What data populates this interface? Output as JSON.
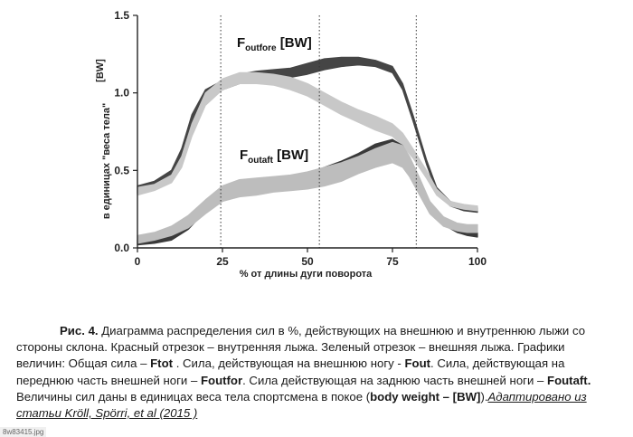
{
  "chart_data": {
    "type": "area",
    "x_ticks": [
      "0",
      "25",
      "50",
      "75",
      "100"
    ],
    "y_ticks": [
      "0.0",
      "0.5",
      "1.0",
      "1.5"
    ],
    "xlim": [
      0,
      100
    ],
    "ylim": [
      0,
      1.5
    ],
    "xlabel": "% от длины дуги поворота",
    "ylabel_unit": "[BW]",
    "ylabel": "в единицах \"веса тела\"",
    "vlines": [
      24.5,
      53.5,
      82
    ],
    "annotations": [
      {
        "main": "F",
        "sub": "outfore",
        "tail": " [BW]"
      },
      {
        "main": "F",
        "sub": "outaft",
        "tail": " [BW]"
      }
    ],
    "series": [
      {
        "band": "outfore-dark",
        "color": "#454545",
        "x": [
          0,
          5,
          10,
          13,
          16,
          20,
          25,
          30,
          35,
          40,
          45,
          50,
          55,
          60,
          65,
          70,
          75,
          78,
          81,
          85,
          88,
          92,
          96,
          100
        ],
        "low": [
          0.35,
          0.38,
          0.44,
          0.56,
          0.78,
          0.95,
          1.02,
          1.06,
          1.08,
          1.09,
          1.1,
          1.12,
          1.15,
          1.17,
          1.18,
          1.17,
          1.13,
          1.02,
          0.82,
          0.54,
          0.36,
          0.27,
          0.24,
          0.23
        ],
        "high": [
          0.4,
          0.43,
          0.5,
          0.64,
          0.86,
          1.02,
          1.08,
          1.12,
          1.14,
          1.15,
          1.16,
          1.19,
          1.22,
          1.23,
          1.23,
          1.21,
          1.17,
          1.06,
          0.86,
          0.57,
          0.39,
          0.3,
          0.27,
          0.26
        ]
      },
      {
        "band": "outfore-light",
        "color": "#c8c8c8",
        "x": [
          0,
          5,
          10,
          13,
          16,
          20,
          25,
          30,
          35,
          40,
          45,
          50,
          55,
          60,
          65,
          70,
          75,
          78,
          81,
          85,
          88,
          92,
          96,
          100
        ],
        "low": [
          0.34,
          0.37,
          0.42,
          0.52,
          0.72,
          0.92,
          1.02,
          1.06,
          1.06,
          1.05,
          1.02,
          0.98,
          0.92,
          0.86,
          0.81,
          0.76,
          0.72,
          0.66,
          0.58,
          0.45,
          0.34,
          0.27,
          0.25,
          0.24
        ],
        "high": [
          0.39,
          0.41,
          0.47,
          0.59,
          0.8,
          1.0,
          1.09,
          1.13,
          1.13,
          1.12,
          1.1,
          1.06,
          1.0,
          0.94,
          0.89,
          0.85,
          0.8,
          0.74,
          0.64,
          0.5,
          0.38,
          0.3,
          0.28,
          0.27
        ]
      },
      {
        "band": "outaft-dark",
        "color": "#3a3a3a",
        "x": [
          0,
          5,
          10,
          15,
          20,
          25,
          30,
          35,
          40,
          45,
          50,
          55,
          60,
          65,
          70,
          75,
          78,
          80,
          83,
          86,
          90,
          94,
          97,
          100
        ],
        "low": [
          0.02,
          0.03,
          0.05,
          0.12,
          0.24,
          0.34,
          0.37,
          0.36,
          0.37,
          0.4,
          0.43,
          0.48,
          0.52,
          0.57,
          0.63,
          0.66,
          0.62,
          0.53,
          0.38,
          0.25,
          0.15,
          0.1,
          0.08,
          0.07
        ],
        "high": [
          0.05,
          0.06,
          0.09,
          0.17,
          0.29,
          0.39,
          0.42,
          0.41,
          0.42,
          0.46,
          0.48,
          0.52,
          0.56,
          0.61,
          0.67,
          0.7,
          0.66,
          0.57,
          0.42,
          0.29,
          0.18,
          0.13,
          0.11,
          0.1
        ]
      },
      {
        "band": "outaft-light",
        "color": "#bdbdbd",
        "x": [
          0,
          5,
          10,
          15,
          20,
          25,
          30,
          35,
          40,
          45,
          50,
          55,
          60,
          65,
          70,
          75,
          78,
          80,
          83,
          86,
          90,
          94,
          97,
          100
        ],
        "low": [
          0.03,
          0.05,
          0.08,
          0.13,
          0.22,
          0.3,
          0.33,
          0.34,
          0.36,
          0.37,
          0.38,
          0.4,
          0.43,
          0.48,
          0.52,
          0.55,
          0.52,
          0.46,
          0.34,
          0.22,
          0.14,
          0.11,
          0.1,
          0.1
        ],
        "high": [
          0.08,
          0.1,
          0.14,
          0.21,
          0.31,
          0.4,
          0.44,
          0.45,
          0.46,
          0.47,
          0.49,
          0.52,
          0.55,
          0.59,
          0.64,
          0.68,
          0.66,
          0.59,
          0.45,
          0.3,
          0.2,
          0.16,
          0.15,
          0.15
        ]
      }
    ]
  },
  "caption": {
    "fig_label": "Рис. 4.",
    "p1": " Диаграмма распределения сил в %, действующих на внешнюю и внутреннюю лыжи со стороны склона. Красный отрезок – внутренняя лыжа. Зеленый отрезок – внешняя лыжа. Графики величин: Общая сила – ",
    "ftot": "Ftot",
    "p2": " . Сила, действующая на внешнюю ногу - ",
    "fout": "Fout",
    "p3": ". Сила, действующая на переднюю часть внешней ноги – ",
    "foutfor": "Foutfor",
    "p4": ".  Сила действующая на заднюю часть внешней ноги – ",
    "foutaft": "Foutaft.",
    "p5": "  Величины сил даны в единицах веса тела спортсмена в покое (",
    "bw": "body weight – [BW]",
    "p6": ").",
    "link": "Адаптировано из статьи Kröll, Spörri, et al  (2015 )"
  },
  "filename": "8w83415.jpg"
}
